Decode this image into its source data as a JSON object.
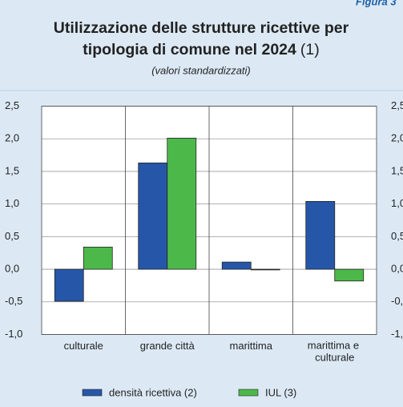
{
  "header": {
    "figure_label": "Figura 3"
  },
  "chart_data": {
    "type": "bar",
    "title_lines": [
      "Utilizzazione delle strutture ricettive per",
      "tipologia di comune nel 2024"
    ],
    "title_note": "(1)",
    "subtitle": "(valori standardizzati)",
    "categories": [
      "culturale",
      "grande città",
      "marittima",
      "marittima e culturale"
    ],
    "series": [
      {
        "name": "densità ricettiva (2)",
        "color": "#2656a8",
        "values": [
          -0.49,
          1.63,
          0.11,
          1.04
        ]
      },
      {
        "name": "IUL (3)",
        "color": "#4db84a",
        "values": [
          0.34,
          2.01,
          -0.01,
          -0.18
        ]
      }
    ],
    "ylim": [
      -1.0,
      2.5
    ],
    "yticks": [
      {
        "value": -1.0,
        "label": "-1,0"
      },
      {
        "value": -0.5,
        "label": "-0,5"
      },
      {
        "value": 0.0,
        "label": "0,0"
      },
      {
        "value": 0.5,
        "label": "0,5"
      },
      {
        "value": 1.0,
        "label": "1,0"
      },
      {
        "value": 1.5,
        "label": "1,5"
      },
      {
        "value": 2.0,
        "label": "2,0"
      },
      {
        "value": 2.5,
        "label": "2,5"
      }
    ],
    "grid": true,
    "legend": "bottom"
  }
}
